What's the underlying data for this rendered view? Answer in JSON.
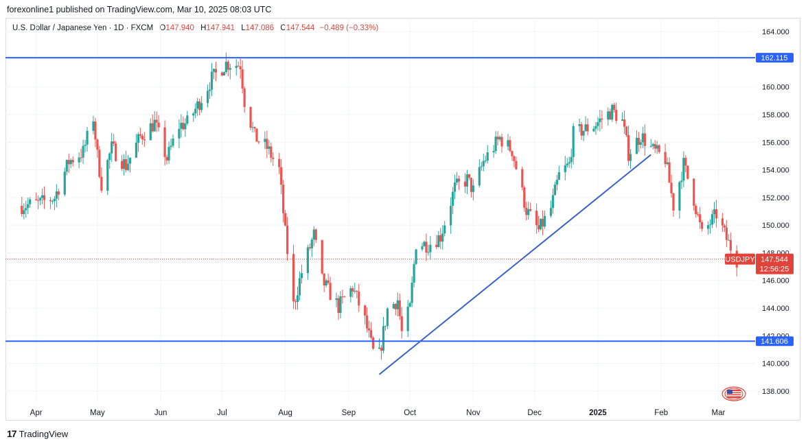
{
  "header": "forexonline1 published on TradingView.com, Mar 10, 2025 08:03 UTC",
  "legend": {
    "symbol": "U.S. Dollar / Japanese Yen · 1D · FXCM",
    "o_label": "O",
    "o": "147.940",
    "h_label": "H",
    "h": "147.941",
    "l_label": "L",
    "l": "147.086",
    "c_label": "C",
    "c": "147.544",
    "change": "−0.489 (−0.33%)"
  },
  "footer": {
    "logo": "17",
    "brand": "TradingView"
  },
  "colors": {
    "up": "#26a69a",
    "down": "#ef5350",
    "line": "#2962ff",
    "trend": "#3a62c7",
    "price_tag": "#e0433a"
  },
  "chart_data": {
    "type": "candlestick",
    "symbol": "USDJPY",
    "ylim": [
      137.2,
      165.0
    ],
    "y_ticks": [
      "164.000",
      "162.000",
      "160.000",
      "158.000",
      "156.000",
      "154.000",
      "152.000",
      "150.000",
      "148.000",
      "146.000",
      "144.000",
      "142.000",
      "140.000",
      "138.000"
    ],
    "x_labels": [
      {
        "label": "Apr",
        "date": "2024-04-01"
      },
      {
        "label": "May",
        "date": "2024-05-01"
      },
      {
        "label": "Jun",
        "date": "2024-06-01"
      },
      {
        "label": "Jul",
        "date": "2024-07-01"
      },
      {
        "label": "Aug",
        "date": "2024-08-01"
      },
      {
        "label": "Sep",
        "date": "2024-09-01"
      },
      {
        "label": "Oct",
        "date": "2024-10-01"
      },
      {
        "label": "Nov",
        "date": "2024-11-01"
      },
      {
        "label": "Dec",
        "date": "2024-12-01"
      },
      {
        "label": "2025",
        "date": "2025-01-01"
      },
      {
        "label": "Feb",
        "date": "2025-02-01"
      },
      {
        "label": "Mar",
        "date": "2025-03-01"
      }
    ],
    "horizontal_levels": [
      {
        "price": 162.115,
        "label": "162.115"
      },
      {
        "price": 141.606,
        "label": "141.606"
      }
    ],
    "trendlines": [
      {
        "x1": "2024-09-16",
        "y1": 139.2,
        "x2": "2025-01-27",
        "y2": 155.1
      }
    ],
    "last_price": {
      "symbol": "USDJPY",
      "price": 147.544,
      "label": "147.544",
      "countdown": "12:56:25"
    },
    "close_path": [
      [
        "2024-03-25",
        151.4
      ],
      [
        "2024-04-03",
        151.6
      ],
      [
        "2024-04-10",
        152.0
      ],
      [
        "2024-04-17",
        154.6
      ],
      [
        "2024-04-24",
        155.3
      ],
      [
        "2024-04-29",
        157.8
      ],
      [
        "2024-05-01",
        155.0
      ],
      [
        "2024-05-03",
        153.0
      ],
      [
        "2024-05-08",
        155.6
      ],
      [
        "2024-05-15",
        154.3
      ],
      [
        "2024-05-22",
        156.4
      ],
      [
        "2024-05-29",
        157.4
      ],
      [
        "2024-06-04",
        154.8
      ],
      [
        "2024-06-10",
        157.2
      ],
      [
        "2024-06-14",
        157.4
      ],
      [
        "2024-06-20",
        158.9
      ],
      [
        "2024-06-26",
        160.6
      ],
      [
        "2024-07-03",
        161.7
      ],
      [
        "2024-07-10",
        161.6
      ],
      [
        "2024-07-12",
        159.0
      ],
      [
        "2024-07-17",
        156.4
      ],
      [
        "2024-07-23",
        155.6
      ],
      [
        "2024-07-29",
        154.0
      ],
      [
        "2024-08-01",
        149.4
      ],
      [
        "2024-08-05",
        144.2
      ],
      [
        "2024-08-09",
        146.6
      ],
      [
        "2024-08-15",
        149.3
      ],
      [
        "2024-08-19",
        146.0
      ],
      [
        "2024-08-27",
        144.1
      ],
      [
        "2024-09-03",
        145.5
      ],
      [
        "2024-09-09",
        143.1
      ],
      [
        "2024-09-13",
        140.8
      ],
      [
        "2024-09-16",
        140.6
      ],
      [
        "2024-09-20",
        143.9
      ],
      [
        "2024-09-25",
        144.6
      ],
      [
        "2024-09-27",
        142.2
      ],
      [
        "2024-10-01",
        144.0
      ],
      [
        "2024-10-04",
        148.7
      ],
      [
        "2024-10-10",
        148.6
      ],
      [
        "2024-10-16",
        149.2
      ],
      [
        "2024-10-23",
        152.7
      ],
      [
        "2024-10-29",
        153.3
      ],
      [
        "2024-11-01",
        152.5
      ],
      [
        "2024-11-06",
        154.6
      ],
      [
        "2024-11-14",
        156.3
      ],
      [
        "2024-11-20",
        155.4
      ],
      [
        "2024-11-27",
        151.1
      ],
      [
        "2024-12-03",
        149.6
      ],
      [
        "2024-12-09",
        151.2
      ],
      [
        "2024-12-13",
        153.6
      ],
      [
        "2024-12-18",
        154.4
      ],
      [
        "2024-12-20",
        156.6
      ],
      [
        "2024-12-30",
        157.2
      ],
      [
        "2025-01-08",
        158.3
      ],
      [
        "2025-01-13",
        157.5
      ],
      [
        "2025-01-16",
        155.2
      ],
      [
        "2025-01-22",
        156.5
      ],
      [
        "2025-01-28",
        155.4
      ],
      [
        "2025-02-03",
        154.8
      ],
      [
        "2025-02-07",
        151.4
      ],
      [
        "2025-02-12",
        154.4
      ],
      [
        "2025-02-17",
        151.9
      ],
      [
        "2025-02-21",
        149.3
      ],
      [
        "2025-02-28",
        150.8
      ],
      [
        "2025-03-05",
        149.0
      ],
      [
        "2025-03-10",
        147.5
      ]
    ]
  }
}
